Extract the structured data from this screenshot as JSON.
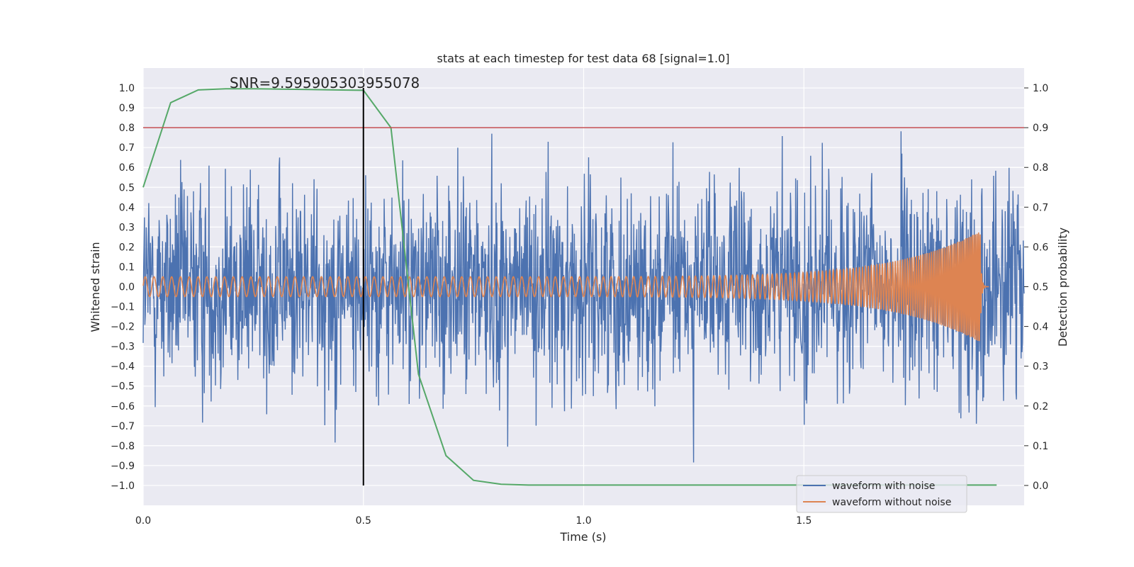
{
  "chart_data": {
    "type": "line",
    "title": "stats at each timestep for test data 68 [signal=1.0]",
    "xlabel": "Time (s)",
    "ylabel": "Whitened strain",
    "y2label": "Detection probability",
    "xlim": [
      0.0,
      2.0
    ],
    "ylim": [
      -1.1,
      1.1
    ],
    "y2lim": [
      -0.05,
      1.05
    ],
    "xticks": [
      0.0,
      0.5,
      1.0,
      1.5
    ],
    "xtick_labels": [
      "0.0",
      "0.5",
      "1.0",
      "1.5"
    ],
    "yticks": [
      1.0,
      0.9,
      0.8,
      0.7,
      0.6,
      0.5,
      0.4,
      0.3,
      0.2,
      0.1,
      0.0,
      -0.1,
      -0.2,
      -0.3,
      -0.4,
      -0.5,
      -0.6,
      -0.7,
      -0.8,
      -0.9,
      -1.0
    ],
    "ytick_labels": [
      "1.0",
      "0.9",
      "0.8",
      "0.7",
      "0.6",
      "0.5",
      "0.4",
      "0.3",
      "0.2",
      "0.1",
      "0.0",
      "−0.1",
      "−0.2",
      "−0.3",
      "−0.4",
      "−0.5",
      "−0.6",
      "−0.7",
      "−0.8",
      "−0.9",
      "−1.0"
    ],
    "y2ticks": [
      1.0,
      0.9,
      0.8,
      0.7,
      0.6,
      0.5,
      0.4,
      0.3,
      0.2,
      0.1,
      0.0
    ],
    "y2tick_labels": [
      "1.0",
      "0.9",
      "0.8",
      "0.7",
      "0.6",
      "0.5",
      "0.4",
      "0.3",
      "0.2",
      "0.1",
      "0.0"
    ],
    "grid": true,
    "legend_position": "lower-right",
    "annotation": "SNR=9.595905303955078",
    "series": [
      {
        "name": "waveform with noise",
        "axis": "left",
        "color": "#4c72b0",
        "x_range": [
          0.0,
          2.0
        ],
        "n_points": 2048,
        "amplitude_approx": 0.35
      },
      {
        "name": "waveform without noise",
        "axis": "left",
        "color": "#dd8452",
        "x_range": [
          0.0,
          1.92
        ],
        "chirp": {
          "f_start": 50,
          "f_end": 290,
          "amp_start": 0.05,
          "amp_peak": 0.28,
          "merger_time": 1.9
        }
      },
      {
        "axis": "right",
        "color": "#55a868",
        "x": [
          0.0,
          0.0625,
          0.125,
          0.1875,
          0.25,
          0.3125,
          0.375,
          0.4375,
          0.5,
          0.5625,
          0.625,
          0.6875,
          0.75,
          0.8125,
          0.875,
          0.9375,
          1.0,
          1.0625,
          1.125,
          1.1875,
          1.25,
          1.3125,
          1.375,
          1.4375,
          1.5,
          1.5625,
          1.625,
          1.6875,
          1.75,
          1.8125,
          1.875,
          1.9375
        ],
        "values": [
          0.75,
          0.963,
          0.995,
          0.998,
          0.998,
          0.997,
          0.996,
          0.995,
          0.994,
          0.9,
          0.28,
          0.075,
          0.013,
          0.003,
          0.001,
          0.001,
          0.001,
          0.001,
          0.001,
          0.001,
          0.001,
          0.001,
          0.001,
          0.001,
          0.001,
          0.001,
          0.001,
          0.001,
          0.001,
          0.001,
          0.001,
          0.001
        ]
      }
    ],
    "reference_lines": [
      {
        "orientation": "horizontal",
        "axis": "right",
        "value": 0.9,
        "color": "#c44e52"
      },
      {
        "orientation": "vertical",
        "value": 0.5,
        "y_range": [
          -1.0,
          1.0
        ],
        "color": "#000000"
      }
    ]
  }
}
